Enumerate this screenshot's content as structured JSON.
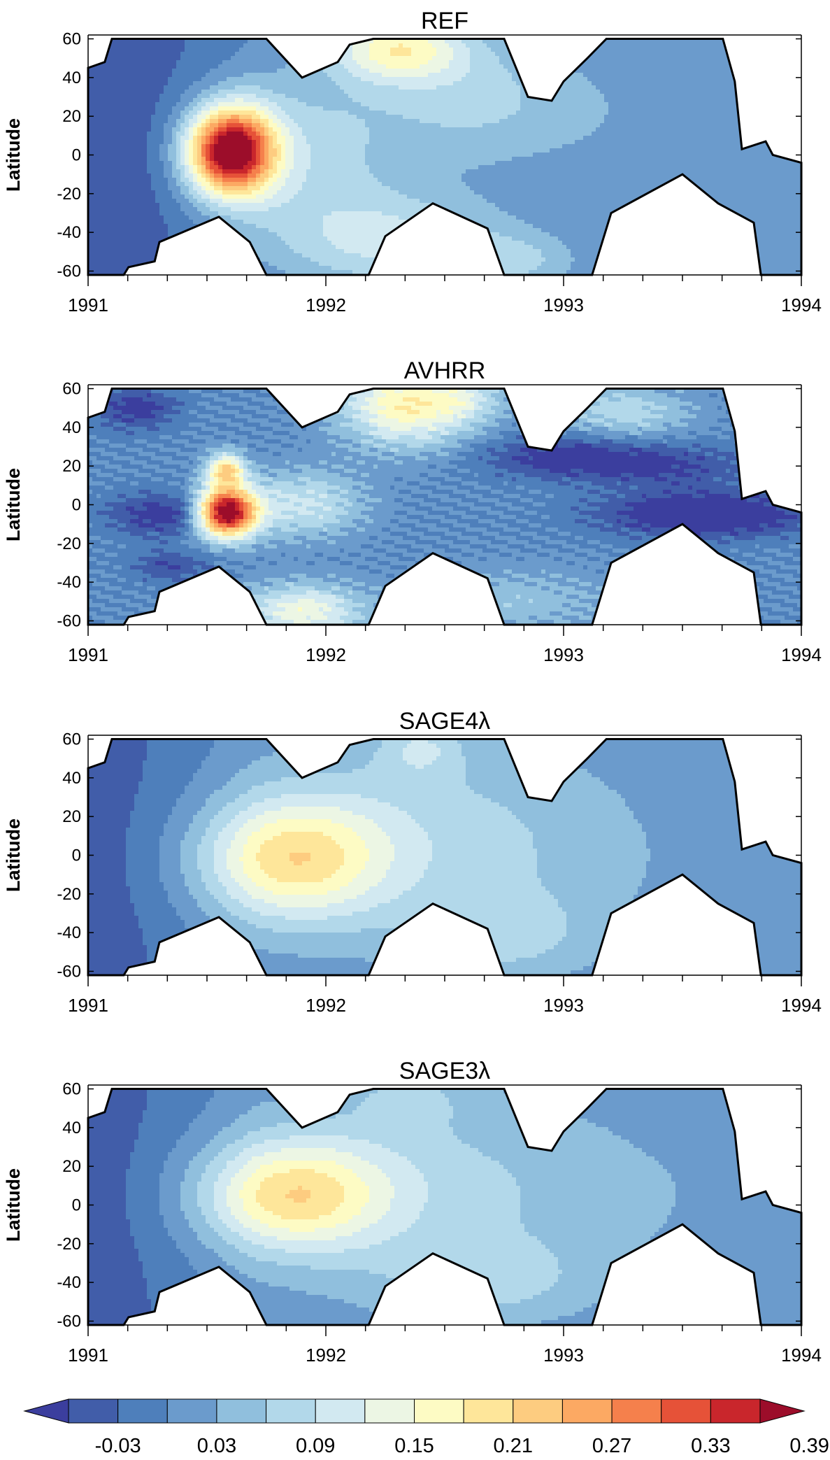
{
  "figure": {
    "colorbar": {
      "colors": [
        "#3b3e9e",
        "#415da9",
        "#4e7fbb",
        "#6b9bcc",
        "#90bfdd",
        "#b2d8ea",
        "#d2e9f1",
        "#ecf6e4",
        "#fdfbc4",
        "#fee69a",
        "#fdcc80",
        "#fca963",
        "#f5804c",
        "#e65238",
        "#c9262c",
        "#9c0d2a"
      ],
      "tick_labels": [
        "-0.03",
        "0.03",
        "0.09",
        "0.15",
        "0.21",
        "0.27",
        "0.33",
        "0.39"
      ]
    }
  },
  "chart_data": [
    {
      "type": "heatmap",
      "title": "REF",
      "ylabel": "Latitude",
      "x_tick_labels": [
        "1991",
        "1992",
        "1993",
        "1994"
      ],
      "y_tick_labels": [
        "60",
        "40",
        "20",
        "0",
        "-20",
        "-40",
        "-60"
      ],
      "xlim": [
        1991,
        1994
      ],
      "ylim": [
        -62,
        62
      ],
      "field": {
        "base": -0.04,
        "blobs": [
          {
            "x": 1991.6,
            "y": 2,
            "sx": 0.13,
            "sy": 16,
            "a": 0.4
          },
          {
            "x": 1991.9,
            "y": 0,
            "sx": 0.3,
            "sy": 32,
            "a": 0.08
          },
          {
            "x": 1992.3,
            "y": 55,
            "sx": 0.2,
            "sy": 12,
            "a": 0.16
          },
          {
            "x": 1992.3,
            "y": -45,
            "sx": 0.35,
            "sy": 18,
            "a": 0.1
          },
          {
            "x": 1992.6,
            "y": 30,
            "sx": 0.3,
            "sy": 25,
            "a": 0.07
          },
          {
            "x": 1992.8,
            "y": -55,
            "sx": 0.2,
            "sy": 10,
            "a": 0.06
          },
          {
            "x": 1993.2,
            "y": 20,
            "sx": 0.35,
            "sy": 30,
            "a": 0.03
          }
        ],
        "ramps": [
          {
            "x0": 1991.1,
            "x1": 1991.7,
            "a": 0.05
          },
          {
            "x0": 1993.8,
            "x1": 1993.3,
            "a": -0.02
          }
        ]
      }
    },
    {
      "type": "heatmap",
      "title": "AVHRR",
      "ylabel": "Latitude",
      "x_tick_labels": [
        "1991",
        "1992",
        "1993",
        "1994"
      ],
      "y_tick_labels": [
        "60",
        "40",
        "20",
        "0",
        "-20",
        "-40",
        "-60"
      ],
      "xlim": [
        1991,
        1994
      ],
      "ylim": [
        -62,
        62
      ],
      "field": {
        "base": 0.0,
        "blobs": [
          {
            "x": 1991.58,
            "y": -4,
            "sx": 0.09,
            "sy": 9,
            "a": 0.42
          },
          {
            "x": 1991.58,
            "y": 18,
            "sx": 0.06,
            "sy": 6,
            "a": 0.2
          },
          {
            "x": 1991.9,
            "y": 0,
            "sx": 0.18,
            "sy": 12,
            "a": 0.1
          },
          {
            "x": 1992.35,
            "y": 52,
            "sx": 0.2,
            "sy": 15,
            "a": 0.18
          },
          {
            "x": 1992.6,
            "y": 55,
            "sx": 0.1,
            "sy": 8,
            "a": 0.05
          },
          {
            "x": 1991.9,
            "y": -55,
            "sx": 0.18,
            "sy": 10,
            "a": 0.14
          },
          {
            "x": 1992.8,
            "y": -50,
            "sx": 0.3,
            "sy": 12,
            "a": 0.05
          },
          {
            "x": 1993.25,
            "y": 48,
            "sx": 0.2,
            "sy": 10,
            "a": 0.08
          },
          {
            "x": 1991.35,
            "y": -5,
            "sx": 0.18,
            "sy": 8,
            "a": -0.09
          },
          {
            "x": 1993.6,
            "y": -5,
            "sx": 0.3,
            "sy": 8,
            "a": -0.12
          },
          {
            "x": 1993.0,
            "y": 25,
            "sx": 0.25,
            "sy": 8,
            "a": -0.08
          },
          {
            "x": 1991.2,
            "y": 50,
            "sx": 0.12,
            "sy": 8,
            "a": -0.08
          },
          {
            "x": 1991.35,
            "y": -32,
            "sx": 0.12,
            "sy": 6,
            "a": -0.06
          },
          {
            "x": 1993.45,
            "y": 20,
            "sx": 0.25,
            "sy": 8,
            "a": -0.06
          }
        ],
        "ramps": [],
        "striped": true
      }
    },
    {
      "type": "heatmap",
      "title": "SAGE4λ",
      "ylabel": "Latitude",
      "x_tick_labels": [
        "1991",
        "1992",
        "1993",
        "1994"
      ],
      "y_tick_labels": [
        "60",
        "40",
        "20",
        "0",
        "-20",
        "-40",
        "-60"
      ],
      "xlim": [
        1991,
        1994
      ],
      "ylim": [
        -62,
        62
      ],
      "field": {
        "base": -0.035,
        "blobs": [
          {
            "x": 1991.85,
            "y": -2,
            "sx": 0.28,
            "sy": 22,
            "a": 0.17
          },
          {
            "x": 1992.3,
            "y": 10,
            "sx": 0.45,
            "sy": 40,
            "a": 0.06
          },
          {
            "x": 1992.4,
            "y": 55,
            "sx": 0.12,
            "sy": 10,
            "a": 0.06
          },
          {
            "x": 1992.75,
            "y": -42,
            "sx": 0.25,
            "sy": 15,
            "a": 0.05
          },
          {
            "x": 1993.0,
            "y": 0,
            "sx": 0.4,
            "sy": 40,
            "a": 0.03
          }
        ],
        "ramps": [
          {
            "x0": 1991.1,
            "x1": 1991.7,
            "a": 0.05
          },
          {
            "x0": 1993.8,
            "x1": 1993.3,
            "a": -0.01
          }
        ]
      }
    },
    {
      "type": "heatmap",
      "title": "SAGE3λ",
      "ylabel": "Latitude",
      "x_tick_labels": [
        "1991",
        "1992",
        "1993",
        "1994"
      ],
      "y_tick_labels": [
        "60",
        "40",
        "20",
        "0",
        "-20",
        "-40",
        "-60"
      ],
      "xlim": [
        1991,
        1994
      ],
      "ylim": [
        -62,
        62
      ],
      "field": {
        "base": -0.035,
        "blobs": [
          {
            "x": 1991.85,
            "y": 5,
            "sx": 0.28,
            "sy": 20,
            "a": 0.17
          },
          {
            "x": 1992.3,
            "y": 10,
            "sx": 0.45,
            "sy": 40,
            "a": 0.06
          },
          {
            "x": 1992.35,
            "y": 55,
            "sx": 0.15,
            "sy": 10,
            "a": 0.04
          },
          {
            "x": 1992.7,
            "y": -40,
            "sx": 0.3,
            "sy": 15,
            "a": 0.05
          },
          {
            "x": 1993.1,
            "y": 5,
            "sx": 0.4,
            "sy": 35,
            "a": 0.03
          }
        ],
        "ramps": [
          {
            "x0": 1991.1,
            "x1": 1991.7,
            "a": 0.05
          },
          {
            "x0": 1993.8,
            "x1": 1993.3,
            "a": -0.01
          }
        ]
      }
    }
  ]
}
